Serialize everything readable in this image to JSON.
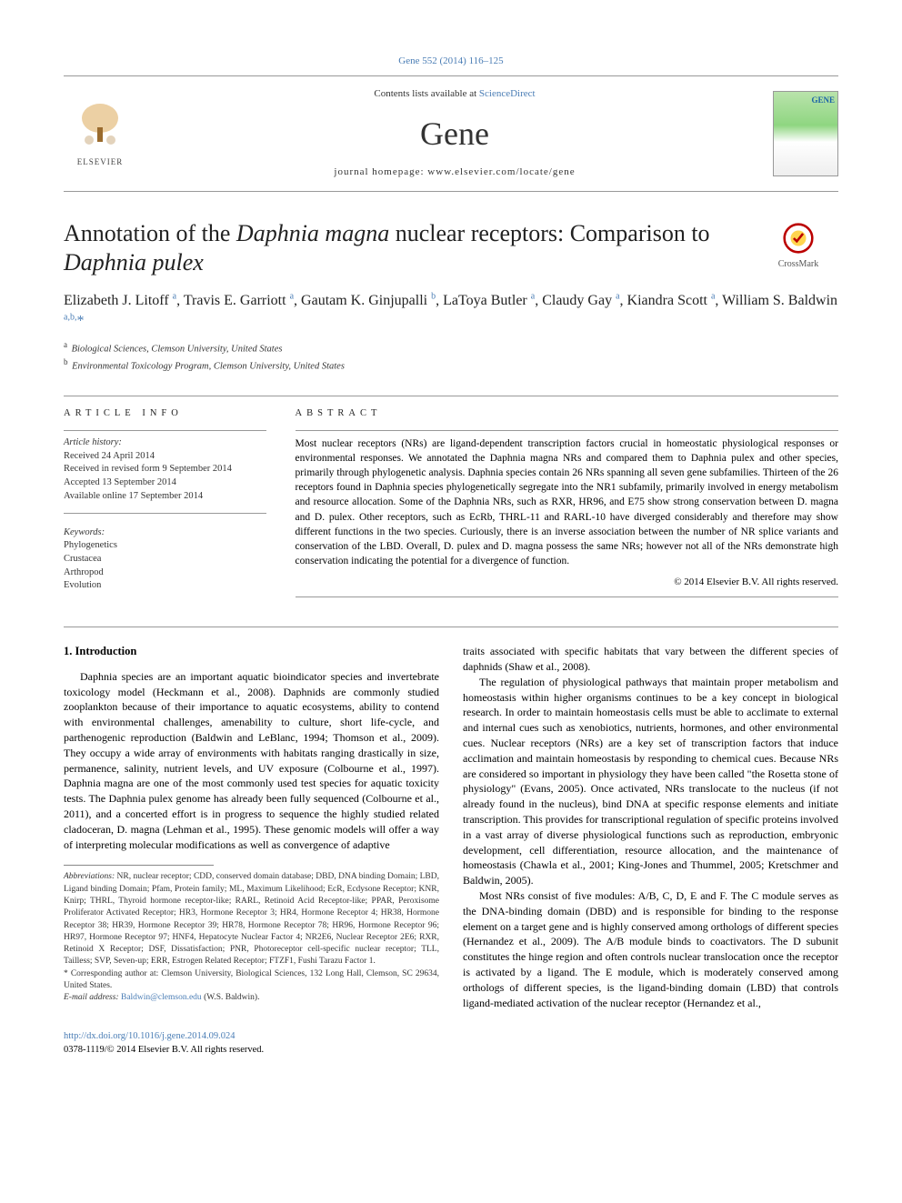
{
  "journal_ref": "Gene 552 (2014) 116–125",
  "masthead": {
    "contents_prefix": "Contents lists available at ",
    "contents_link": "ScienceDirect",
    "journal_name": "Gene",
    "homepage_label": "journal homepage: www.elsevier.com/locate/gene",
    "publisher_name": "ELSEVIER",
    "cover_label": "GENE"
  },
  "crossmark_label": "CrossMark",
  "title": {
    "pre": "Annotation of the ",
    "ital1": "Daphnia magna",
    "mid": " nuclear receptors: Comparison to ",
    "ital2": "Daphnia pulex"
  },
  "authors_html": "Elizabeth J. Litoff <sup>a</sup>, Travis E. Garriott <sup>a</sup>, Gautam K. Ginjupalli <sup>b</sup>, LaToya Butler <sup>a</sup>, Claudy Gay <sup>a</sup>, Kiandra Scott <sup>a</sup>, William S. Baldwin <sup>a,b,</sup>",
  "author_star": "*",
  "affiliations": [
    {
      "mark": "a",
      "text": "Biological Sciences, Clemson University, United States"
    },
    {
      "mark": "b",
      "text": "Environmental Toxicology Program, Clemson University, United States"
    }
  ],
  "article_info": {
    "heading": "ARTICLE INFO",
    "history_label": "Article history:",
    "history": [
      "Received 24 April 2014",
      "Received in revised form 9 September 2014",
      "Accepted 13 September 2014",
      "Available online 17 September 2014"
    ],
    "keywords_label": "Keywords:",
    "keywords": [
      "Phylogenetics",
      "Crustacea",
      "Arthropod",
      "Evolution"
    ]
  },
  "abstract": {
    "heading": "ABSTRACT",
    "text": "Most nuclear receptors (NRs) are ligand-dependent transcription factors crucial in homeostatic physiological responses or environmental responses. We annotated the Daphnia magna NRs and compared them to Daphnia pulex and other species, primarily through phylogenetic analysis. Daphnia species contain 26 NRs spanning all seven gene subfamilies. Thirteen of the 26 receptors found in Daphnia species phylogenetically segregate into the NR1 subfamily, primarily involved in energy metabolism and resource allocation. Some of the Daphnia NRs, such as RXR, HR96, and E75 show strong conservation between D. magna and D. pulex. Other receptors, such as EcRb, THRL-11 and RARL-10 have diverged considerably and therefore may show different functions in the two species. Curiously, there is an inverse association between the number of NR splice variants and conservation of the LBD. Overall, D. pulex and D. magna possess the same NRs; however not all of the NRs demonstrate high conservation indicating the potential for a divergence of function.",
    "copyright": "© 2014 Elsevier B.V. All rights reserved."
  },
  "section1_head": "1. Introduction",
  "left_paras": [
    "Daphnia species are an important aquatic bioindicator species and invertebrate toxicology model (Heckmann et al., 2008). Daphnids are commonly studied zooplankton because of their importance to aquatic ecosystems, ability to contend with environmental challenges, amenability to culture, short life-cycle, and parthenogenic reproduction (Baldwin and LeBlanc, 1994; Thomson et al., 2009). They occupy a wide array of environments with habitats ranging drastically in size, permanence, salinity, nutrient levels, and UV exposure (Colbourne et al., 1997). Daphnia magna are one of the most commonly used test species for aquatic toxicity tests. The Daphnia pulex genome has already been fully sequenced (Colbourne et al., 2011), and a concerted effort is in progress to sequence the highly studied related cladoceran, D. magna (Lehman et al., 1995). These genomic models will offer a way of interpreting molecular modifications as well as convergence of adaptive"
  ],
  "right_paras": [
    "traits associated with specific habitats that vary between the different species of daphnids (Shaw et al., 2008).",
    "The regulation of physiological pathways that maintain proper metabolism and homeostasis within higher organisms continues to be a key concept in biological research. In order to maintain homeostasis cells must be able to acclimate to external and internal cues such as xenobiotics, nutrients, hormones, and other environmental cues. Nuclear receptors (NRs) are a key set of transcription factors that induce acclimation and maintain homeostasis by responding to chemical cues. Because NRs are considered so important in physiology they have been called \"the Rosetta stone of physiology\" (Evans, 2005). Once activated, NRs translocate to the nucleus (if not already found in the nucleus), bind DNA at specific response elements and initiate transcription. This provides for transcriptional regulation of specific proteins involved in a vast array of diverse physiological functions such as reproduction, embryonic development, cell differentiation, resource allocation, and the maintenance of homeostasis (Chawla et al., 2001; King-Jones and Thummel, 2005; Kretschmer and Baldwin, 2005).",
    "Most NRs consist of five modules: A/B, C, D, E and F. The C module serves as the DNA-binding domain (DBD) and is responsible for binding to the response element on a target gene and is highly conserved among orthologs of different species (Hernandez et al., 2009). The A/B module binds to coactivators. The D subunit constitutes the hinge region and often controls nuclear translocation once the receptor is activated by a ligand. The E module, which is moderately conserved among orthologs of different species, is the ligand-binding domain (LBD) that controls ligand-mediated activation of the nuclear receptor (Hernandez et al.,"
  ],
  "abbrev_label": "Abbreviations:",
  "abbrev_text": " NR, nuclear receptor; CDD, conserved domain database; DBD, DNA binding Domain; LBD, Ligand binding Domain; Pfam, Protein family; ML, Maximum Likelihood; EcR, Ecdysone Receptor; KNR, Knirp; THRL, Thyroid hormone receptor-like; RARL, Retinoid Acid Receptor-like; PPAR, Peroxisome Proliferator Activated Receptor; HR3, Hormone Receptor 3; HR4, Hormone Receptor 4; HR38, Hormone Receptor 38; HR39, Hormone Receptor 39; HR78, Hormone Receptor 78; HR96, Hormone Receptor 96; HR97, Hormone Receptor 97; HNF4, Hepatocyte Nuclear Factor 4; NR2E6, Nuclear Receptor 2E6; RXR, Retinoid X Receptor; DSF, Dissatisfaction; PNR, Photoreceptor cell-specific nuclear receptor; TLL, Tailless; SVP, Seven-up; ERR, Estrogen Related Receptor; FTZF1, Fushi Tarazu Factor 1.",
  "corresp_label": "* Corresponding author at: ",
  "corresp_text": "Clemson University, Biological Sciences, 132 Long Hall, Clemson, SC 29634, United States.",
  "email_label": "E-mail address: ",
  "email_value": "Baldwin@clemson.edu",
  "email_suffix": " (W.S. Baldwin).",
  "doi": "http://dx.doi.org/10.1016/j.gene.2014.09.024",
  "issn_line": "0378-1119/© 2014 Elsevier B.V. All rights reserved.",
  "colors": {
    "link": "#4a7db5",
    "text": "#000000",
    "rule": "#999999"
  }
}
